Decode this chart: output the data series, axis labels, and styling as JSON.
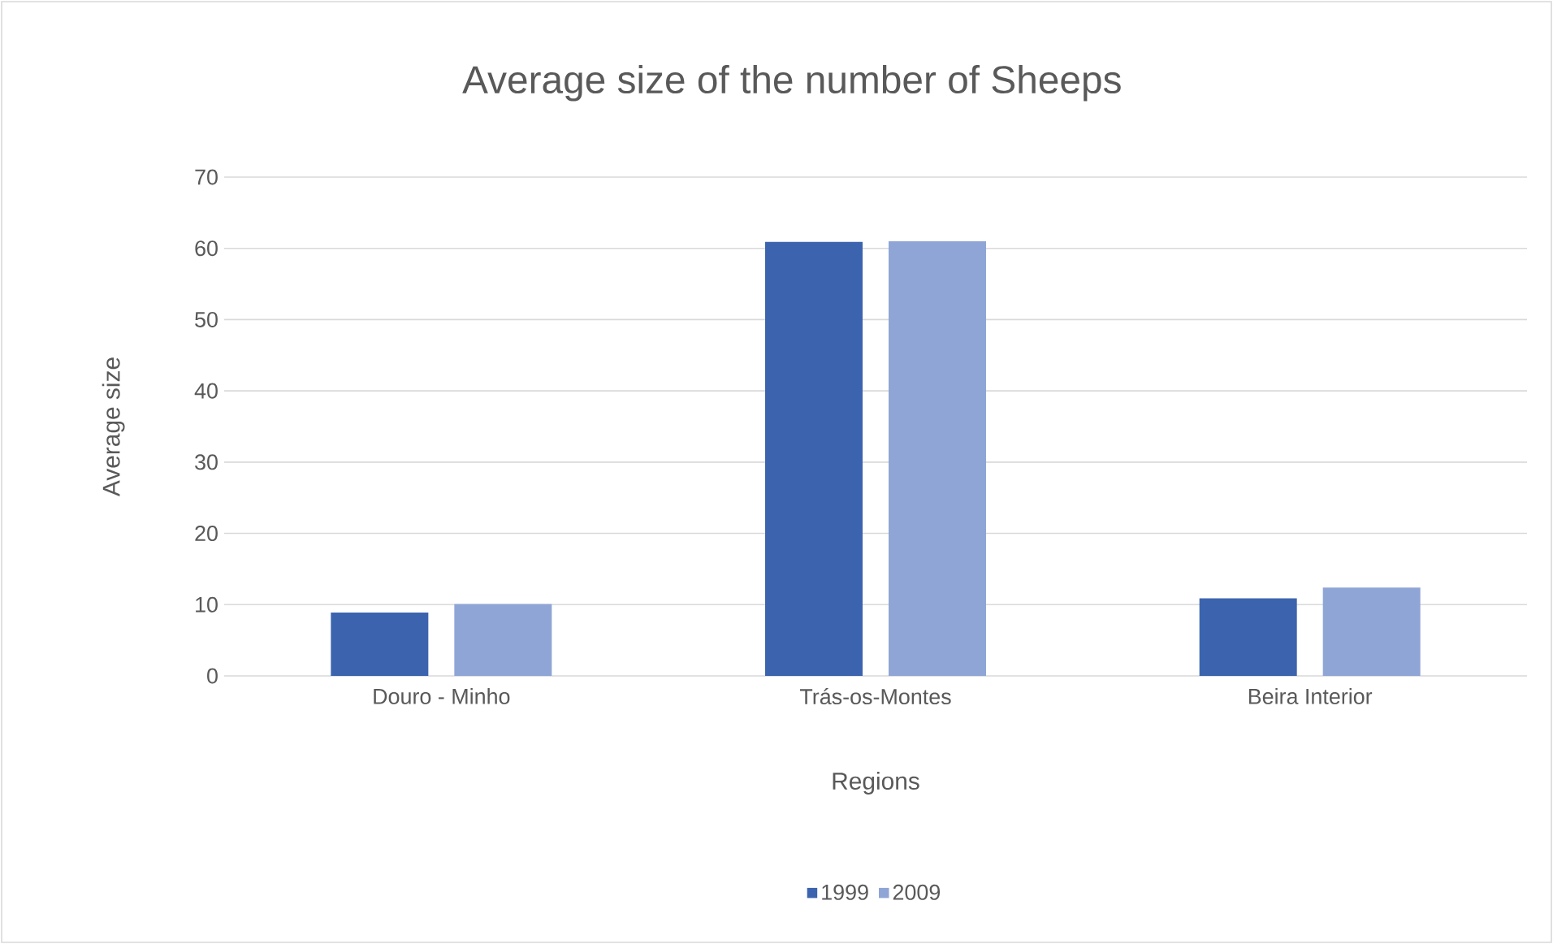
{
  "chart_data": {
    "type": "bar",
    "title": "Average size of the number of Sheeps",
    "xlabel": "Regions",
    "ylabel": "Average size",
    "categories": [
      "Douro - Minho",
      "Trás-os-Montes",
      "Beira Interior"
    ],
    "series": [
      {
        "name": "1999",
        "color": "#3c64ae",
        "values": [
          8.9,
          60.9,
          10.9
        ]
      },
      {
        "name": "2009",
        "color": "#8fa5d6",
        "values": [
          10.1,
          61.0,
          12.4
        ]
      }
    ],
    "ylim": [
      0,
      70
    ],
    "yticks": [
      0,
      10,
      20,
      30,
      40,
      50,
      60,
      70
    ],
    "grid": "y",
    "legend": "bottom"
  }
}
